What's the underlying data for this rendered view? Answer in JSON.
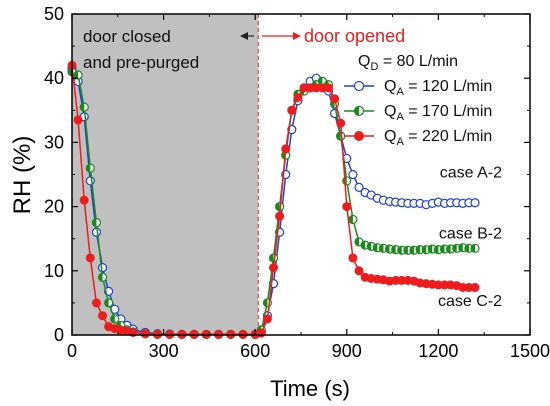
{
  "chart_data": {
    "type": "line",
    "xlabel": "Time (s)",
    "ylabel": "RH (%)",
    "xlim": [
      0,
      1500
    ],
    "ylim": [
      0,
      50
    ],
    "x_ticks": [
      "0",
      "300",
      "600",
      "900",
      "1200",
      "1500"
    ],
    "y_ticks": [
      "0",
      "10",
      "20",
      "30",
      "40",
      "50"
    ],
    "x_tick_values": [
      0,
      300,
      600,
      900,
      1200,
      1500
    ],
    "y_tick_values": [
      0,
      10,
      20,
      30,
      40,
      50
    ],
    "grid": false,
    "shaded_region": {
      "x_start": 0,
      "x_end": 610,
      "color": "#c0c0c0"
    },
    "door_line_x": 610,
    "annotations": {
      "closed_line1": "door closed",
      "closed_line2": "and pre-purged",
      "opened": "door opened",
      "qd": "Q",
      "qd_sub": "D",
      "qd_rest": " = 80 L/min"
    },
    "legend_position": "right",
    "series": [
      {
        "name": "Q",
        "sub": "A",
        "rest": " = 120 L/min",
        "color": "#1f3fd6",
        "marker": "open",
        "case_label": "case A-2",
        "points": [
          [
            0,
            41.5
          ],
          [
            20,
            39.5
          ],
          [
            40,
            34
          ],
          [
            60,
            24
          ],
          [
            80,
            16
          ],
          [
            100,
            10.5
          ],
          [
            120,
            6.8
          ],
          [
            140,
            4
          ],
          [
            160,
            2.5
          ],
          [
            180,
            1.5
          ],
          [
            200,
            0.9
          ],
          [
            220,
            0.6
          ],
          [
            240,
            0.4
          ],
          [
            260,
            0.3
          ],
          [
            280,
            0.2
          ],
          [
            300,
            0.2
          ],
          [
            320,
            0.15
          ],
          [
            340,
            0.1
          ],
          [
            360,
            0.1
          ],
          [
            380,
            0.1
          ],
          [
            400,
            0.1
          ],
          [
            420,
            0.1
          ],
          [
            440,
            0.1
          ],
          [
            460,
            0.1
          ],
          [
            480,
            0.1
          ],
          [
            500,
            0.1
          ],
          [
            520,
            0.1
          ],
          [
            540,
            0.1
          ],
          [
            560,
            0.1
          ],
          [
            580,
            0.1
          ],
          [
            600,
            0.1
          ],
          [
            620,
            0.5
          ],
          [
            640,
            3
          ],
          [
            660,
            8
          ],
          [
            680,
            16
          ],
          [
            700,
            25
          ],
          [
            720,
            32
          ],
          [
            740,
            36.5
          ],
          [
            760,
            38.5
          ],
          [
            780,
            39.5
          ],
          [
            800,
            40
          ],
          [
            820,
            39.5
          ],
          [
            840,
            38
          ],
          [
            860,
            34.5
          ],
          [
            880,
            31
          ],
          [
            900,
            27.5
          ],
          [
            920,
            25
          ],
          [
            940,
            23
          ],
          [
            960,
            22.2
          ],
          [
            980,
            21.8
          ],
          [
            1000,
            21.3
          ],
          [
            1020,
            21
          ],
          [
            1040,
            20.8
          ],
          [
            1060,
            20.7
          ],
          [
            1080,
            20.6
          ],
          [
            1100,
            20.5
          ],
          [
            1120,
            20.5
          ],
          [
            1140,
            20.5
          ],
          [
            1160,
            20.3
          ],
          [
            1180,
            20.5
          ],
          [
            1200,
            20.7
          ],
          [
            1220,
            20.5
          ],
          [
            1240,
            20.6
          ],
          [
            1260,
            20.6
          ],
          [
            1280,
            20.5
          ],
          [
            1300,
            20.6
          ],
          [
            1320,
            20.6
          ]
        ]
      },
      {
        "name": "Q",
        "sub": "A",
        "rest": " = 170 L/min",
        "color": "#1a8a1a",
        "marker": "half",
        "case_label": "case B-2",
        "points": [
          [
            0,
            41
          ],
          [
            20,
            40.5
          ],
          [
            40,
            35.5
          ],
          [
            60,
            26
          ],
          [
            80,
            17.5
          ],
          [
            100,
            9
          ],
          [
            120,
            5
          ],
          [
            140,
            2.5
          ],
          [
            160,
            1.5
          ],
          [
            180,
            0.8
          ],
          [
            200,
            0.5
          ],
          [
            220,
            0.3
          ],
          [
            240,
            0.2
          ],
          [
            260,
            0.15
          ],
          [
            280,
            0.1
          ],
          [
            300,
            0.1
          ],
          [
            320,
            0.1
          ],
          [
            340,
            0.1
          ],
          [
            360,
            0.1
          ],
          [
            380,
            0.1
          ],
          [
            400,
            0.1
          ],
          [
            420,
            0.1
          ],
          [
            440,
            0.1
          ],
          [
            460,
            0.1
          ],
          [
            480,
            0.1
          ],
          [
            500,
            0.1
          ],
          [
            520,
            0.1
          ],
          [
            540,
            0.1
          ],
          [
            560,
            0.1
          ],
          [
            580,
            0.1
          ],
          [
            600,
            0.1
          ],
          [
            620,
            0.8
          ],
          [
            640,
            5
          ],
          [
            660,
            12
          ],
          [
            680,
            20
          ],
          [
            700,
            28
          ],
          [
            720,
            35
          ],
          [
            740,
            37.5
          ],
          [
            760,
            38
          ],
          [
            780,
            38.5
          ],
          [
            800,
            39
          ],
          [
            820,
            39.5
          ],
          [
            840,
            39
          ],
          [
            860,
            36
          ],
          [
            880,
            31
          ],
          [
            900,
            24
          ],
          [
            920,
            18
          ],
          [
            940,
            14.5
          ],
          [
            960,
            14
          ],
          [
            980,
            13.8
          ],
          [
            1000,
            13.6
          ],
          [
            1020,
            13.5
          ],
          [
            1040,
            13.4
          ],
          [
            1060,
            13.3
          ],
          [
            1080,
            13.2
          ],
          [
            1100,
            13.2
          ],
          [
            1120,
            13.2
          ],
          [
            1140,
            13.3
          ],
          [
            1160,
            13.3
          ],
          [
            1180,
            13.4
          ],
          [
            1200,
            13.3
          ],
          [
            1220,
            13.4
          ],
          [
            1240,
            13.4
          ],
          [
            1260,
            13.5
          ],
          [
            1280,
            13.6
          ],
          [
            1300,
            13.5
          ],
          [
            1320,
            13.5
          ]
        ]
      },
      {
        "name": "Q",
        "sub": "A",
        "rest": " = 220 L/min",
        "color": "#ee1c1c",
        "marker": "filled",
        "case_label": "case C-2",
        "points": [
          [
            0,
            42
          ],
          [
            20,
            33.5
          ],
          [
            40,
            21
          ],
          [
            60,
            12
          ],
          [
            80,
            5
          ],
          [
            100,
            3
          ],
          [
            120,
            1.3
          ],
          [
            140,
            1
          ],
          [
            160,
            0.8
          ],
          [
            180,
            0.6
          ],
          [
            200,
            0.4
          ],
          [
            220,
            0.3
          ],
          [
            240,
            0.2
          ],
          [
            260,
            0.15
          ],
          [
            280,
            0.1
          ],
          [
            300,
            0.1
          ],
          [
            320,
            0.1
          ],
          [
            340,
            0.1
          ],
          [
            360,
            0.1
          ],
          [
            380,
            0.1
          ],
          [
            400,
            0.1
          ],
          [
            420,
            0.1
          ],
          [
            440,
            0.1
          ],
          [
            460,
            0.1
          ],
          [
            480,
            0.1
          ],
          [
            500,
            0.1
          ],
          [
            520,
            0.1
          ],
          [
            540,
            0.1
          ],
          [
            560,
            0.1
          ],
          [
            580,
            0.1
          ],
          [
            600,
            0.1
          ],
          [
            620,
            0.3
          ],
          [
            640,
            2.5
          ],
          [
            660,
            10.5
          ],
          [
            680,
            18.5
          ],
          [
            700,
            29
          ],
          [
            720,
            35
          ],
          [
            740,
            37
          ],
          [
            760,
            38.5
          ],
          [
            780,
            38.5
          ],
          [
            800,
            38.5
          ],
          [
            820,
            38.5
          ],
          [
            840,
            38.5
          ],
          [
            860,
            36.8
          ],
          [
            880,
            33
          ],
          [
            900,
            20
          ],
          [
            920,
            12
          ],
          [
            940,
            10
          ],
          [
            960,
            9
          ],
          [
            980,
            8.8
          ],
          [
            1000,
            8.7
          ],
          [
            1020,
            8.6
          ],
          [
            1040,
            8.4
          ],
          [
            1060,
            8.5
          ],
          [
            1080,
            8.5
          ],
          [
            1100,
            8.5
          ],
          [
            1120,
            8.4
          ],
          [
            1140,
            8.1
          ],
          [
            1160,
            8
          ],
          [
            1180,
            7.9
          ],
          [
            1200,
            7.8
          ],
          [
            1220,
            7.8
          ],
          [
            1240,
            7.8
          ],
          [
            1260,
            7.7
          ],
          [
            1280,
            7.4
          ],
          [
            1300,
            7.4
          ],
          [
            1320,
            7.4
          ]
        ]
      }
    ]
  }
}
